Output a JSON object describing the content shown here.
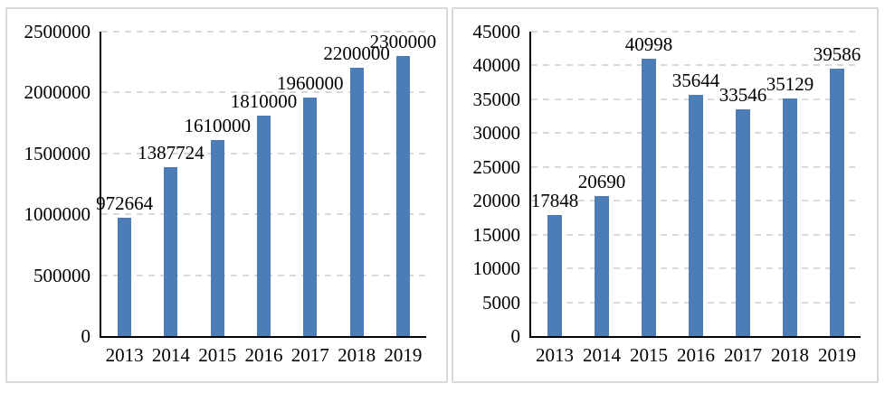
{
  "page": {
    "background": "#ffffff",
    "panel_border_color": "#d9d9d9"
  },
  "chart_data": [
    {
      "type": "bar",
      "title": "",
      "xlabel": "",
      "ylabel": "",
      "categories": [
        "2013",
        "2014",
        "2015",
        "2016",
        "2017",
        "2018",
        "2019"
      ],
      "values": [
        972664,
        1387724,
        1610000,
        1810000,
        1960000,
        2200000,
        2300000
      ],
      "data_labels": [
        "972664",
        "1387724",
        "1610000",
        "1810000",
        "1960000",
        "2200000",
        "2300000"
      ],
      "ylim": [
        0,
        2500000
      ],
      "ytick_step": 500000,
      "yticks": [
        "0",
        "500000",
        "1000000",
        "1500000",
        "2000000",
        "2500000"
      ],
      "grid": true,
      "legend": "none",
      "bar_color": "#4d7db7",
      "gridline_color": "#d9d9d9",
      "axis_color": "#000000",
      "text_color": "#000000"
    },
    {
      "type": "bar",
      "title": "",
      "xlabel": "",
      "ylabel": "",
      "categories": [
        "2013",
        "2014",
        "2015",
        "2016",
        "2017",
        "2018",
        "2019"
      ],
      "values": [
        17848,
        20690,
        40998,
        35644,
        33546,
        35129,
        39586
      ],
      "data_labels": [
        "17848",
        "20690",
        "40998",
        "35644",
        "33546",
        "35129",
        "39586"
      ],
      "ylim": [
        0,
        45000
      ],
      "ytick_step": 5000,
      "yticks": [
        "0",
        "5000",
        "10000",
        "15000",
        "20000",
        "25000",
        "30000",
        "35000",
        "40000",
        "45000"
      ],
      "grid": true,
      "legend": "none",
      "bar_color": "#4d7db7",
      "gridline_color": "#d9d9d9",
      "axis_color": "#000000",
      "text_color": "#000000"
    }
  ]
}
